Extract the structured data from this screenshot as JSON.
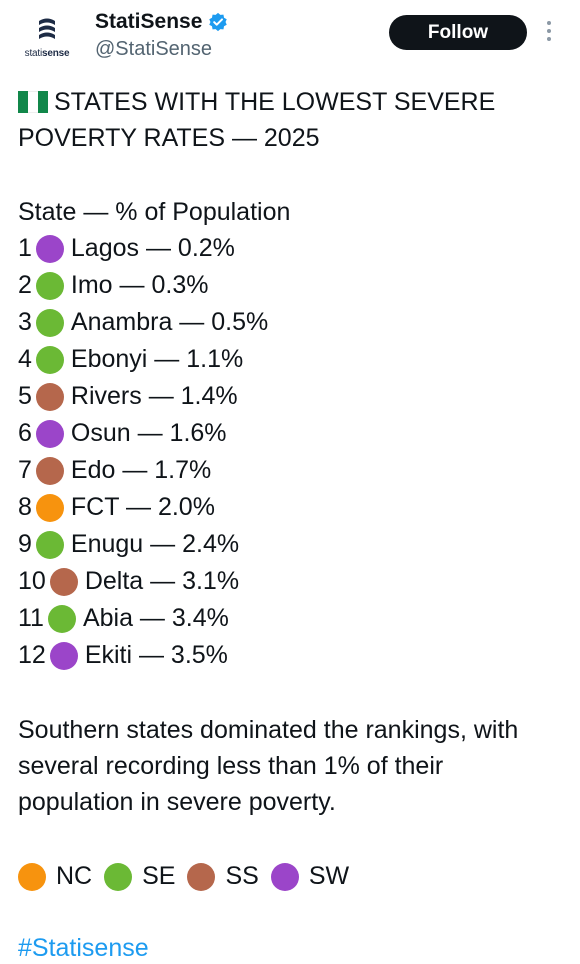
{
  "account": {
    "display_name": "StatiSense",
    "handle": "@StatiSense",
    "logo_text_light": "stati",
    "logo_text_bold": "sense",
    "follow_label": "Follow"
  },
  "post": {
    "title": "STATES WITH THE LOWEST SEVERE POVERTY RATES — 2025",
    "subhead": "State — % of Population",
    "rows": [
      {
        "rank": "1",
        "text": "Lagos — 0.2%",
        "region": "SW"
      },
      {
        "rank": "2",
        "text": "Imo — 0.3%",
        "region": "SE"
      },
      {
        "rank": "3",
        "text": "Anambra — 0.5%",
        "region": "SE"
      },
      {
        "rank": "4",
        "text": "Ebonyi — 1.1%",
        "region": "SE"
      },
      {
        "rank": "5",
        "text": "Rivers — 1.4%",
        "region": "SS"
      },
      {
        "rank": "6",
        "text": "Osun — 1.6%",
        "region": "SW"
      },
      {
        "rank": "7",
        "text": "Edo — 1.7%",
        "region": "SS"
      },
      {
        "rank": "8",
        "text": "FCT — 2.0%",
        "region": "NC"
      },
      {
        "rank": "9",
        "text": "Enugu — 2.4%",
        "region": "SE"
      },
      {
        "rank": "10",
        "text": "Delta — 3.1%",
        "region": "SS"
      },
      {
        "rank": "11",
        "text": "Abia — 3.4%",
        "region": "SE"
      },
      {
        "rank": "12",
        "text": "Ekiti — 3.5%",
        "region": "SW"
      }
    ],
    "summary": "Southern states dominated the rankings, with several recording less than 1% of their population in severe poverty.",
    "legend": [
      {
        "label": "NC",
        "color": "#f7930e"
      },
      {
        "label": "SE",
        "color": "#6bb935"
      },
      {
        "label": "SS",
        "color": "#b5674c"
      },
      {
        "label": "SW",
        "color": "#9b45c9"
      }
    ],
    "hashtag": "#Statisense"
  },
  "colors": {
    "NC": "#f7930e",
    "SE": "#6bb935",
    "SS": "#b5674c",
    "SW": "#9b45c9",
    "flag_green": "#11874a",
    "verified": "#1d9bf0"
  }
}
